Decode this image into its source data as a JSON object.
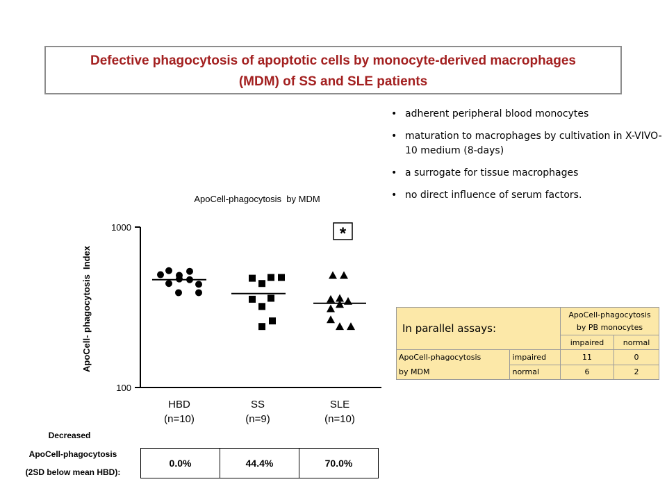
{
  "title": {
    "line1": "Defective phagocytosis of apoptotic cells by monocyte-derived macrophages",
    "line2": "(MDM) of SS and SLE patients",
    "color": "#a32020"
  },
  "bullets": [
    "adherent peripheral blood monocytes",
    "maturation to macrophages by cultivation in X-VIVO-10 medium (8-days)",
    "a surrogate for tissue macrophages",
    "no direct influence of serum factors."
  ],
  "chart_data": {
    "type": "scatter",
    "title": "ApoCell-phagocytosis  by MDM",
    "ylabel": "ApoCell- phagocytosis  Index",
    "yscale": "log",
    "ylim": [
      100,
      1000
    ],
    "yticks": [
      "100",
      "1000"
    ],
    "categories": [
      {
        "name": "HBD",
        "n": "(n=10)"
      },
      {
        "name": "SS",
        "n": "(n=9)"
      },
      {
        "name": "SLE",
        "n": "(n=10)"
      }
    ],
    "annotation": "*",
    "series": [
      {
        "marker": "circle",
        "mean": 470,
        "values": [
          505,
          535,
          500,
          530,
          440,
          445,
          475,
          470,
          390,
          390
        ]
      },
      {
        "marker": "square",
        "mean": 385,
        "values": [
          480,
          485,
          445,
          485,
          355,
          360,
          320,
          260,
          240
        ]
      },
      {
        "marker": "triangle",
        "mean": 335,
        "values": [
          500,
          500,
          355,
          360,
          345,
          330,
          310,
          265,
          240,
          240
        ]
      }
    ]
  },
  "decreased": {
    "label_line1": "Decreased",
    "label_line2": "ApoCell-phagocytosis",
    "label_line3": "(2SD below mean HBD):",
    "values": [
      "0.0%",
      "44.4%",
      "70.0%"
    ]
  },
  "parallel": {
    "heading": "In parallel assays:",
    "col_group": "ApoCell-phagocytosis by PB monocytes",
    "col_impaired": "impaired",
    "col_normal": "normal",
    "row_label_1": "ApoCell-phagocytosis",
    "row_label_2": "by MDM",
    "rows": [
      {
        "label": "impaired",
        "impaired": "11",
        "normal": "0"
      },
      {
        "label": "normal",
        "impaired": "6",
        "normal": "2"
      }
    ],
    "highlight_color": "#fce8a8"
  }
}
